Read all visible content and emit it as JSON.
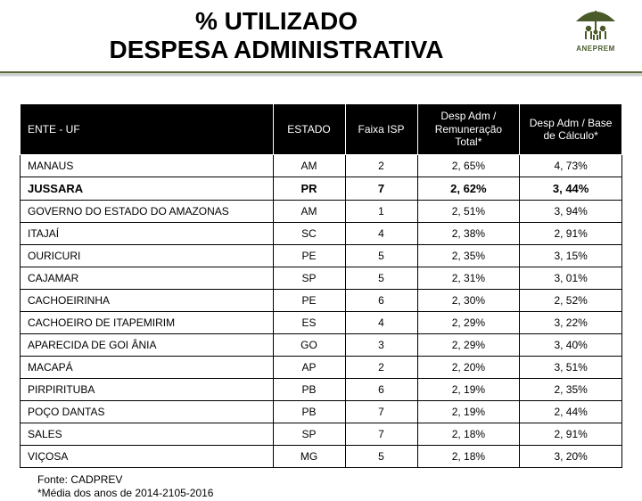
{
  "title_line1": "% UTILIZADO",
  "title_line2": "DESPESA ADMINISTRATIVA",
  "logo_label": "ANEPREM",
  "table": {
    "headers": {
      "ente": "ENTE - UF",
      "estado": "ESTADO",
      "faixa": "Faixa ISP",
      "rem": "Desp Adm / Remuneração Total*",
      "base": "Desp Adm / Base de Cálculo*"
    },
    "col_widths": [
      "42%",
      "12%",
      "12%",
      "17%",
      "17%"
    ],
    "rows": [
      {
        "ente": "MANAUS",
        "estado": "AM",
        "faixa": "2",
        "rem": "2, 65%",
        "base": "4, 73%",
        "bold": false
      },
      {
        "ente": "JUSSARA",
        "estado": "PR",
        "faixa": "7",
        "rem": "2, 62%",
        "base": "3, 44%",
        "bold": true
      },
      {
        "ente": "GOVERNO DO ESTADO DO AMAZONAS",
        "estado": "AM",
        "faixa": "1",
        "rem": "2, 51%",
        "base": "3, 94%",
        "bold": false
      },
      {
        "ente": "ITAJAÍ",
        "estado": "SC",
        "faixa": "4",
        "rem": "2, 38%",
        "base": "2, 91%",
        "bold": false
      },
      {
        "ente": "OURICURI",
        "estado": "PE",
        "faixa": "5",
        "rem": "2, 35%",
        "base": "3, 15%",
        "bold": false
      },
      {
        "ente": "CAJAMAR",
        "estado": "SP",
        "faixa": "5",
        "rem": "2, 31%",
        "base": "3, 01%",
        "bold": false
      },
      {
        "ente": "CACHOEIRINHA",
        "estado": "PE",
        "faixa": "6",
        "rem": "2, 30%",
        "base": "2, 52%",
        "bold": false
      },
      {
        "ente": "CACHOEIRO DE ITAPEMIRIM",
        "estado": "ES",
        "faixa": "4",
        "rem": "2, 29%",
        "base": "3, 22%",
        "bold": false
      },
      {
        "ente": "APARECIDA DE GOI ÂNIA",
        "estado": "GO",
        "faixa": "3",
        "rem": "2, 29%",
        "base": "3, 40%",
        "bold": false
      },
      {
        "ente": "MACAPÁ",
        "estado": "AP",
        "faixa": "2",
        "rem": "2, 20%",
        "base": "3, 51%",
        "bold": false
      },
      {
        "ente": "PIRPIRITUBA",
        "estado": "PB",
        "faixa": "6",
        "rem": "2, 19%",
        "base": "2, 35%",
        "bold": false
      },
      {
        "ente": "POÇO DANTAS",
        "estado": "PB",
        "faixa": "7",
        "rem": "2, 19%",
        "base": "2, 44%",
        "bold": false
      },
      {
        "ente": "SALES",
        "estado": "SP",
        "faixa": "7",
        "rem": "2, 18%",
        "base": "2, 91%",
        "bold": false
      },
      {
        "ente": "VIÇOSA",
        "estado": "MG",
        "faixa": "5",
        "rem": "2, 18%",
        "base": "3, 20%",
        "bold": false
      }
    ]
  },
  "footnote_line1": "Fonte: CADPREV",
  "footnote_line2": "*Média dos anos de 2014-2105-2016",
  "colors": {
    "header_bg": "#000000",
    "header_fg": "#ffffff",
    "cell_bg": "#ffffff",
    "cell_fg": "#000000",
    "bar_green": "#5a6b38",
    "bar_gray": "#cfcfcf",
    "logo_green": "#4a5a28"
  }
}
